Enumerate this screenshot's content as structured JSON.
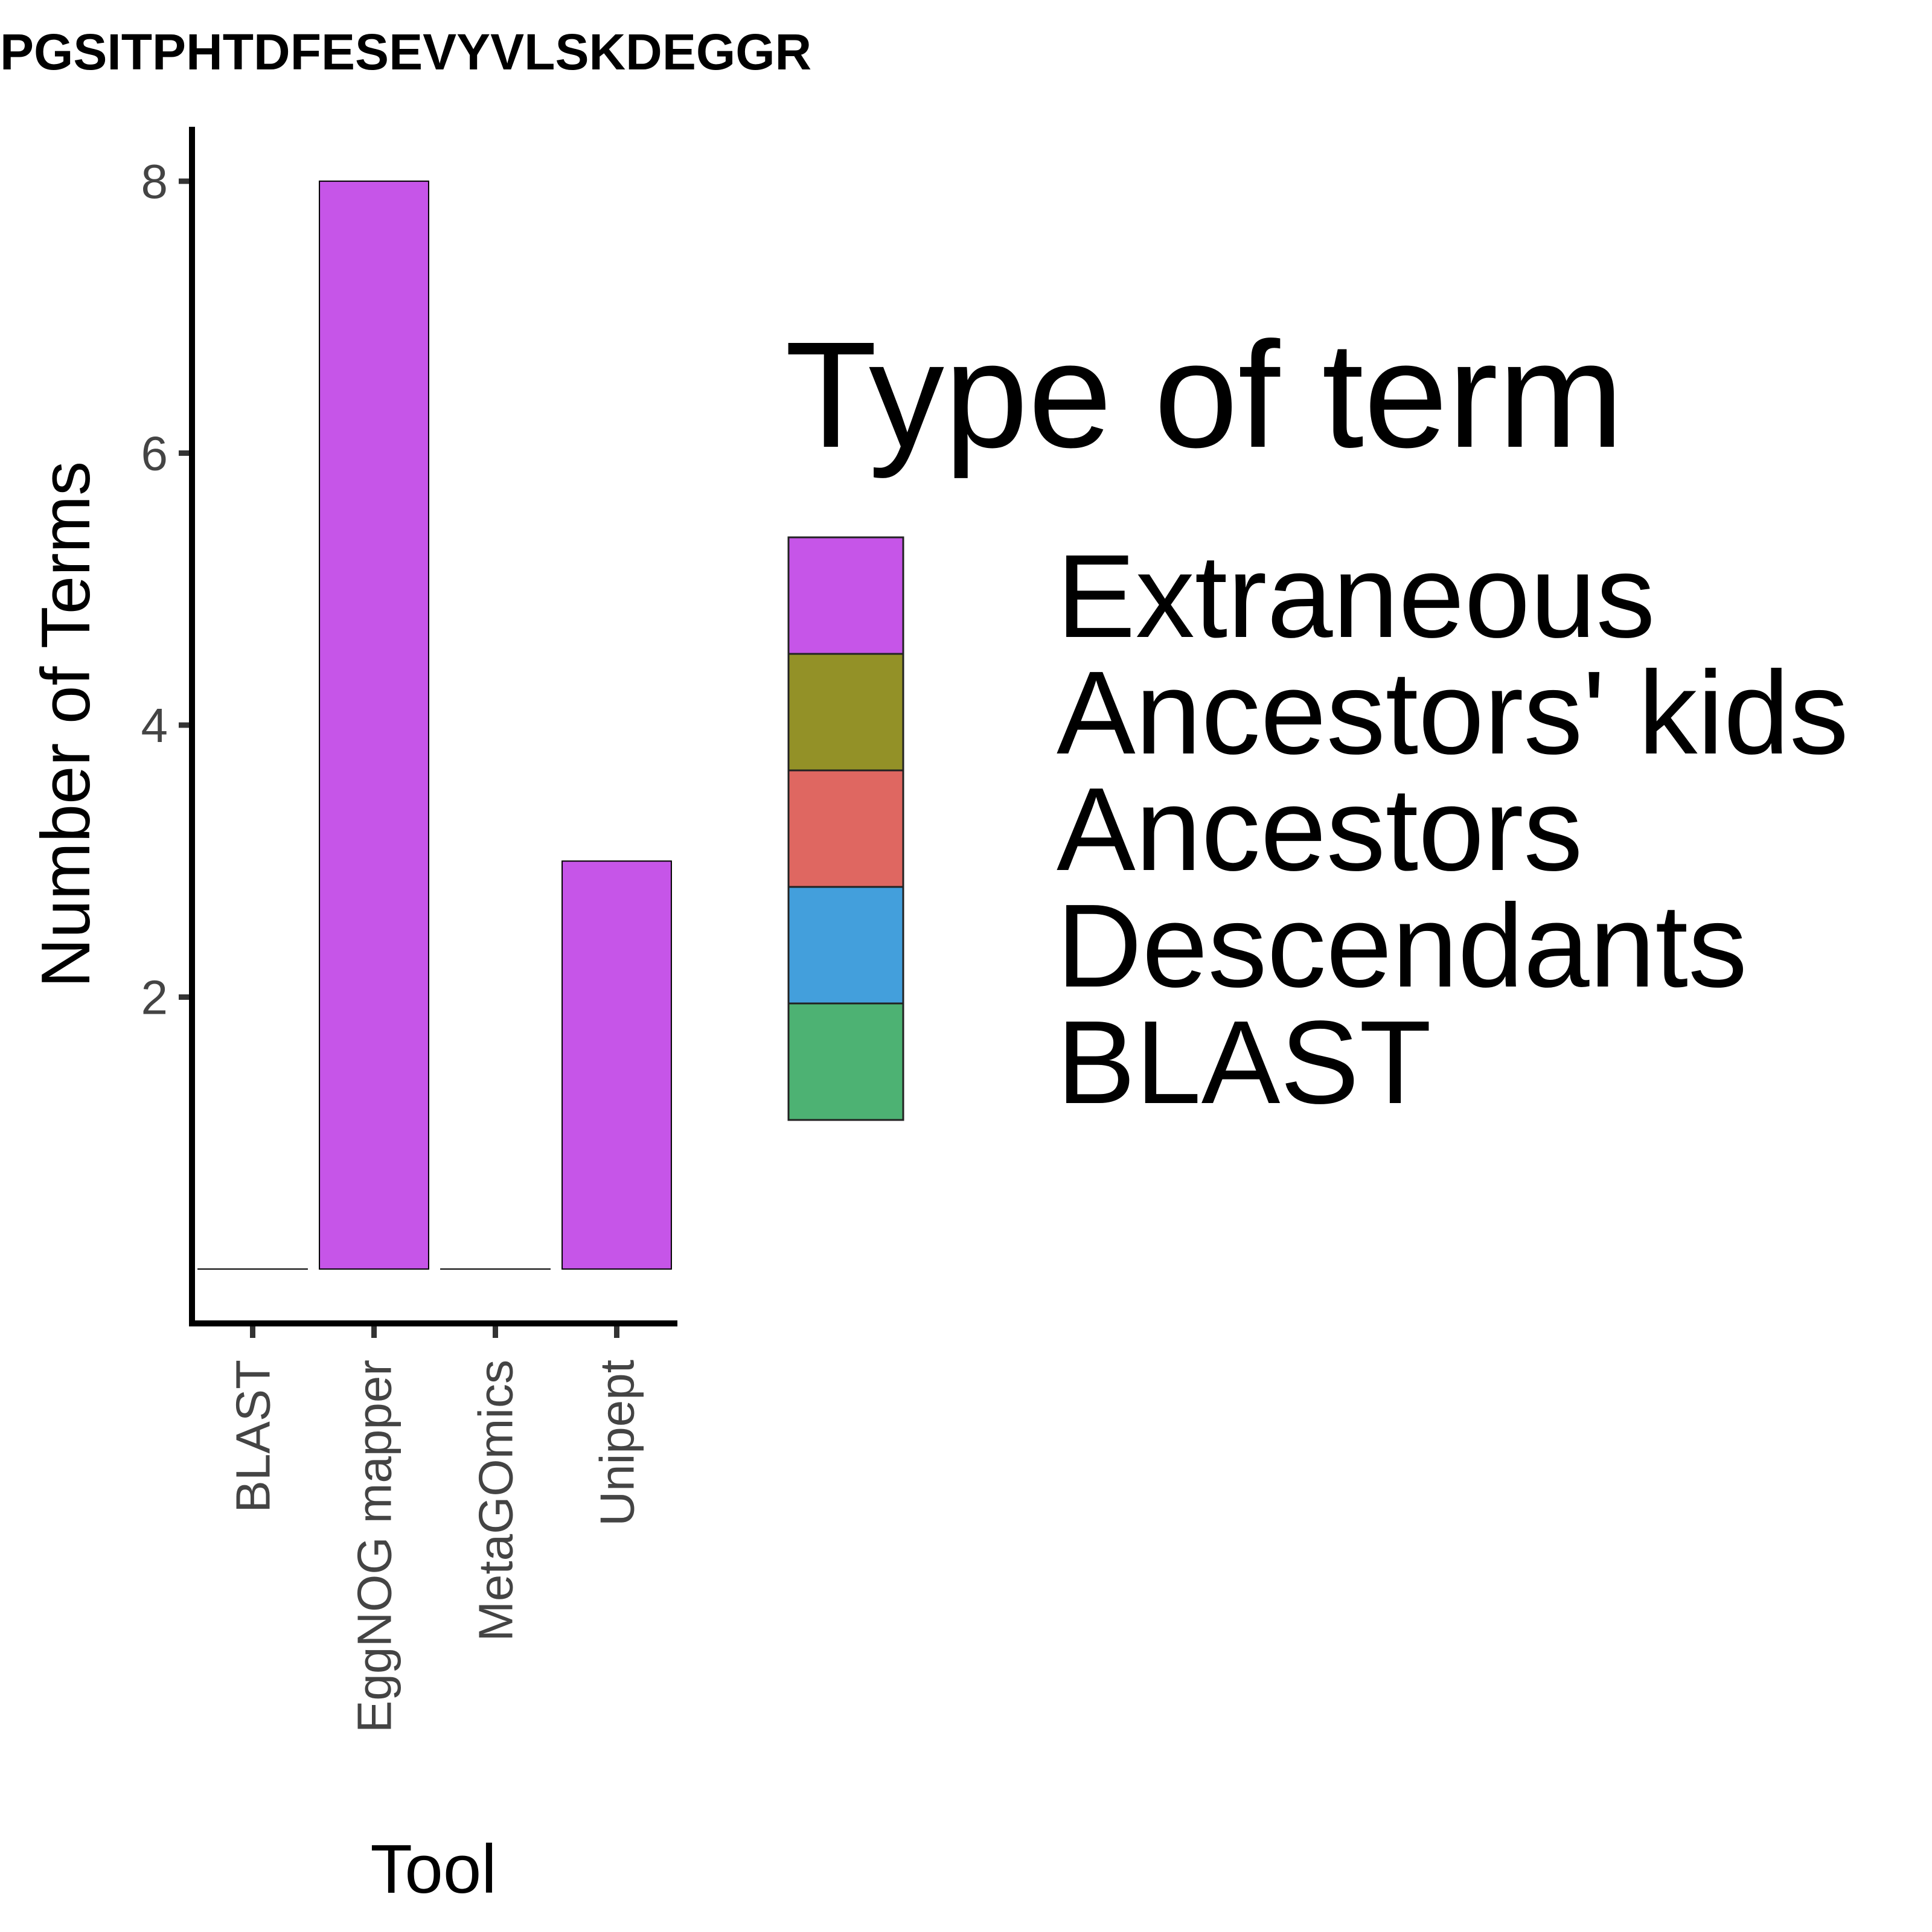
{
  "chart_data": {
    "type": "bar",
    "title": "PGSITPHTDFESEVYVLSKDEGGR",
    "xlabel": "Tool",
    "ylabel": "Number of Terms",
    "categories": [
      "BLAST",
      "EggNOG mapper",
      "MetaGOmics",
      "Unipept"
    ],
    "series": [
      {
        "name": "Extraneous",
        "color": "#C655E8",
        "values": [
          0,
          8,
          0,
          3
        ]
      }
    ],
    "yticks": [
      2,
      4,
      6,
      8
    ],
    "ylim": [
      -0.4,
      8.4
    ],
    "grid": false,
    "legend": {
      "title": "Type of term",
      "position": "right",
      "entries": [
        {
          "label": "Extraneous",
          "color": "#C655E8"
        },
        {
          "label": "Ancestors' kids",
          "color": "#939127"
        },
        {
          "label": "Ancestors",
          "color": "#DF6761"
        },
        {
          "label": "Descendants",
          "color": "#439FDC"
        },
        {
          "label": "BLAST",
          "color": "#4DB273"
        }
      ]
    }
  }
}
